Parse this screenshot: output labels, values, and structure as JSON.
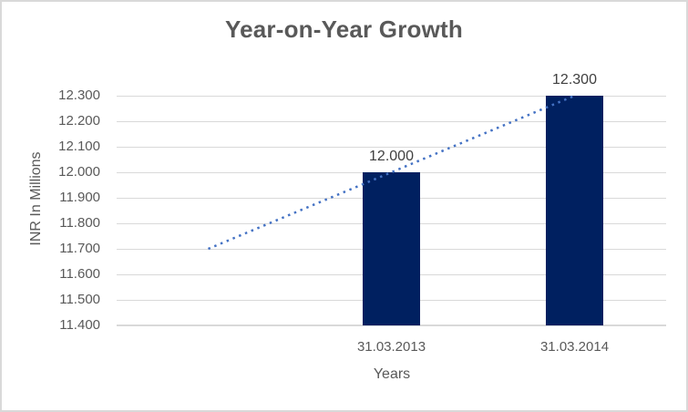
{
  "chart_data": {
    "type": "bar",
    "title": "Year-on-Year Growth",
    "categories": [
      "31.03.2013",
      "31.03.2014"
    ],
    "values": [
      12.0,
      12.3
    ],
    "data_labels": [
      "12.000",
      "12.300"
    ],
    "xlabel": "Years",
    "ylabel": "INR In Millions",
    "ylim": [
      11.4,
      12.3
    ],
    "ytick_step": 0.1,
    "ytick_labels": [
      "11.400",
      "11.500",
      "11.600",
      "11.700",
      "11.800",
      "11.900",
      "12.000",
      "12.100",
      "12.200",
      "12.300"
    ],
    "grid": true,
    "legend": "none",
    "trendline": {
      "type": "linear",
      "style": "dotted",
      "backward_periods": 1,
      "start_value": 11.7,
      "end_value": 12.3
    },
    "colors": {
      "bar": "#002060",
      "trendline": "#4472C4",
      "gridline": "#D9D9D9",
      "axis_line": "#D9D9D9",
      "tick_text": "#595959",
      "title_text": "#595959",
      "data_label_text": "#404040",
      "chart_border": "#D9D9D9",
      "background": "#FFFFFF"
    }
  }
}
